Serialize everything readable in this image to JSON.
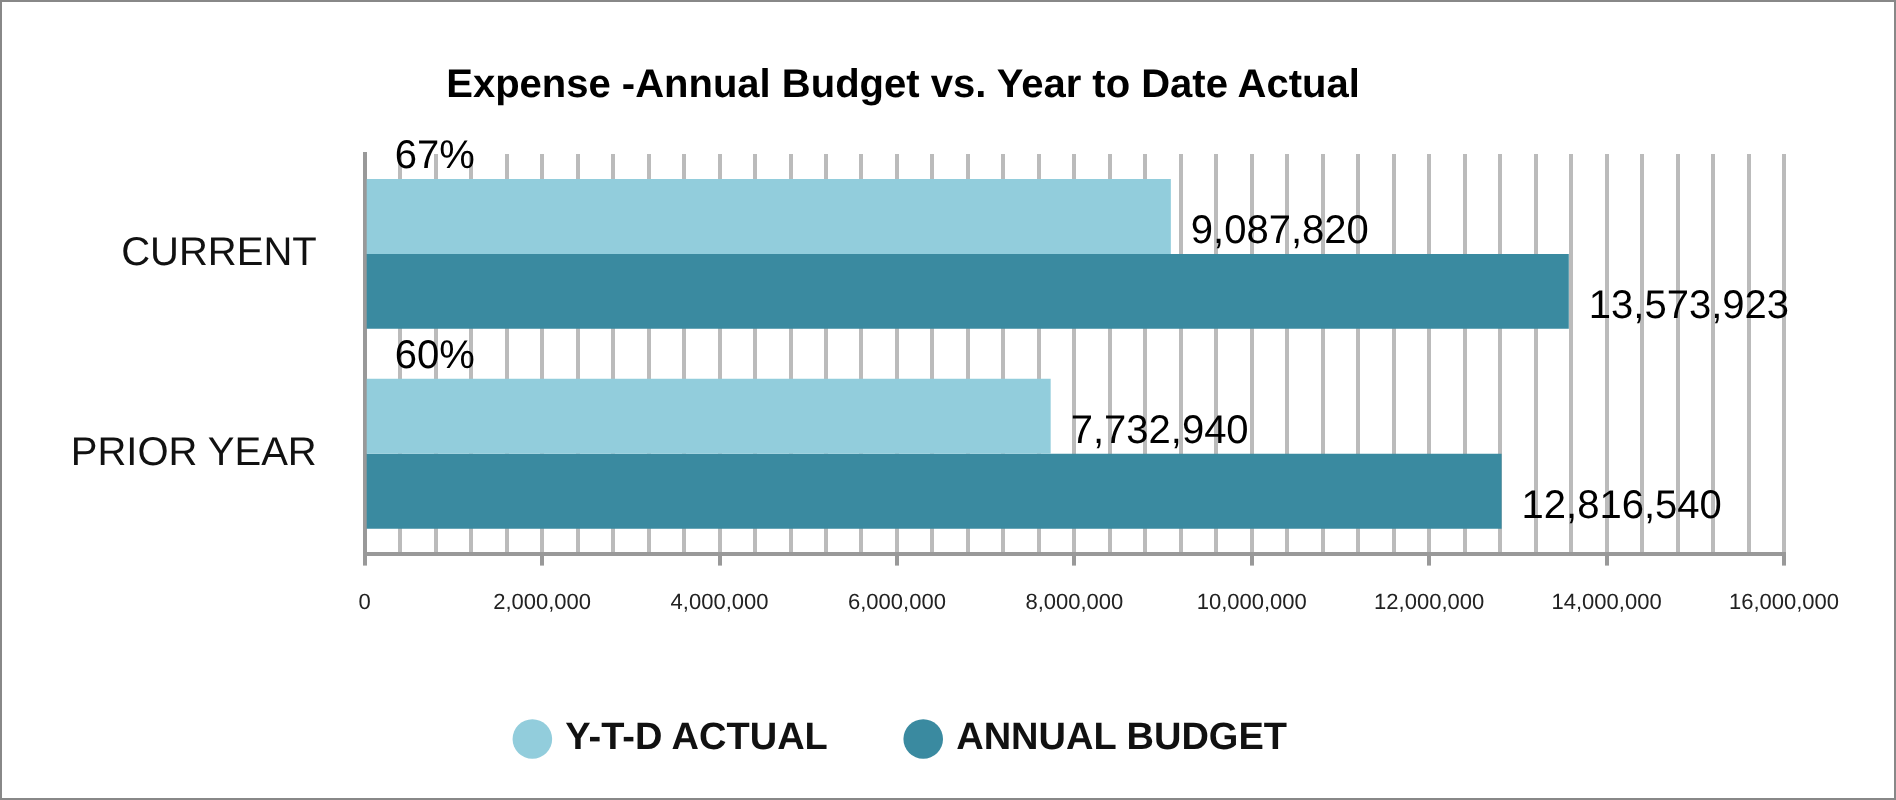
{
  "chart_data": {
    "type": "bar",
    "orientation": "horizontal",
    "title": "Expense -Annual Budget vs. Year to Date Actual",
    "categories": [
      "CURRENT",
      "PRIOR YEAR"
    ],
    "series": [
      {
        "name": "Y-T-D ACTUAL",
        "color": "#92cddc",
        "values": [
          9087820,
          7732940
        ],
        "value_labels": [
          "9,087,820",
          "7,732,940"
        ]
      },
      {
        "name": "ANNUAL BUDGET",
        "color": "#3a8aa0",
        "values": [
          13573923,
          12816540
        ],
        "value_labels": [
          "13,573,923",
          "12,816,540"
        ]
      }
    ],
    "xlim": [
      0,
      16000000
    ],
    "xticks": [
      0,
      {
        "value": 400000,
        "label": null
      },
      {
        "value": 800000,
        "label": null
      },
      {
        "value": 1200000,
        "label": null
      },
      {
        "value": 1600000,
        "label": null
      },
      {
        "value": 2000000,
        "label": "2,000,000"
      },
      {
        "value": 2400000,
        "label": null
      },
      {
        "value": 2800000,
        "label": null
      },
      {
        "value": 3200000,
        "label": null
      },
      {
        "value": 3600000,
        "label": null
      },
      {
        "value": 4000000,
        "label": "4,000,000"
      },
      {
        "value": 4400000,
        "label": null
      },
      {
        "value": 4800000,
        "label": null
      },
      {
        "value": 5200000,
        "label": null
      },
      {
        "value": 5600000,
        "label": null
      },
      {
        "value": 6000000,
        "label": "6,000,000"
      },
      {
        "value": 6400000,
        "label": null
      },
      {
        "value": 6800000,
        "label": null
      },
      {
        "value": 7200000,
        "label": null
      },
      {
        "value": 7600000,
        "label": null
      },
      {
        "value": 8000000,
        "label": "8,000,000"
      },
      {
        "value": 8400000,
        "label": null
      },
      {
        "value": 8800000,
        "label": null
      },
      {
        "value": 9200000,
        "label": null
      },
      {
        "value": 9600000,
        "label": null
      },
      {
        "value": 10000000,
        "label": "10,000,000"
      },
      {
        "value": 10400000,
        "label": null
      },
      {
        "value": 10800000,
        "label": null
      },
      {
        "value": 11200000,
        "label": null
      },
      {
        "value": 11600000,
        "label": null
      },
      {
        "value": 12000000,
        "label": "12,000,000"
      },
      {
        "value": 12400000,
        "label": null
      },
      {
        "value": 12800000,
        "label": null
      },
      {
        "value": 13200000,
        "label": null
      },
      {
        "value": 13600000,
        "label": null
      },
      {
        "value": 14000000,
        "label": "14,000,000"
      },
      {
        "value": 14400000,
        "label": null
      },
      {
        "value": 14800000,
        "label": null
      },
      {
        "value": 15200000,
        "label": null
      },
      {
        "value": 15600000,
        "label": null
      },
      {
        "value": 16000000,
        "label": "16,000,000"
      }
    ],
    "annotations": [
      {
        "text": "67%",
        "y": "CURRENT"
      },
      {
        "text": "60%",
        "y": "PRIOR YEAR"
      }
    ],
    "grid": "x",
    "legend": "bottom",
    "marker": "circle"
  }
}
